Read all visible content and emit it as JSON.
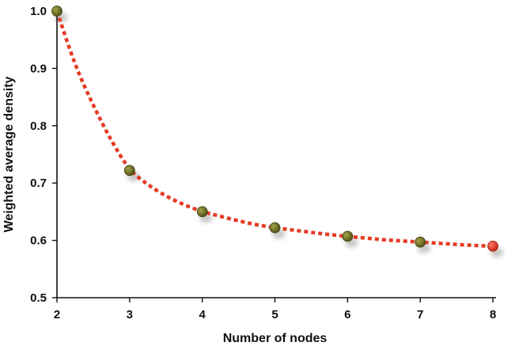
{
  "chart_data": {
    "type": "scatter",
    "title": "",
    "xlabel": "Number of nodes",
    "ylabel": "Weighted average density",
    "xlim": [
      2,
      8
    ],
    "ylim": [
      0.5,
      1.0
    ],
    "x_ticks": [
      2,
      3,
      4,
      5,
      6,
      7,
      8
    ],
    "x_tick_labels": [
      "2",
      "3",
      "4",
      "5",
      "6",
      "7",
      "8"
    ],
    "y_ticks": [
      0.5,
      0.6,
      0.7,
      0.8,
      0.9,
      1.0
    ],
    "y_tick_labels": [
      "0.5",
      "0.6",
      "0.7",
      "0.8",
      "0.9",
      "1.0"
    ],
    "grid": false,
    "legend": "none",
    "series": [
      {
        "x": [
          2,
          3,
          4,
          5,
          6,
          7,
          8
        ],
        "y": [
          1.0,
          0.722,
          0.65,
          0.622,
          0.607,
          0.597,
          0.59
        ],
        "point_colors": [
          "#6b6b1f",
          "#6b6b1f",
          "#6b6b1f",
          "#6b6b1f",
          "#6b6b1f",
          "#6b6b1f",
          "#e03a2a"
        ]
      }
    ],
    "fit_curve": {
      "style": "dotted",
      "color": "#e53a24",
      "x": [
        2,
        2.25,
        2.5,
        2.75,
        3,
        3.25,
        3.5,
        3.75,
        4,
        4.25,
        4.5,
        4.75,
        5,
        5.25,
        5.5,
        5.75,
        6,
        6.25,
        6.5,
        6.75,
        7,
        7.25,
        7.5,
        7.75,
        8
      ],
      "y": [
        1.0,
        0.905,
        0.835,
        0.773,
        0.722,
        0.697,
        0.677,
        0.662,
        0.65,
        0.642,
        0.634,
        0.627,
        0.622,
        0.618,
        0.614,
        0.61,
        0.607,
        0.604,
        0.601,
        0.599,
        0.597,
        0.595,
        0.593,
        0.591,
        0.59
      ]
    }
  }
}
